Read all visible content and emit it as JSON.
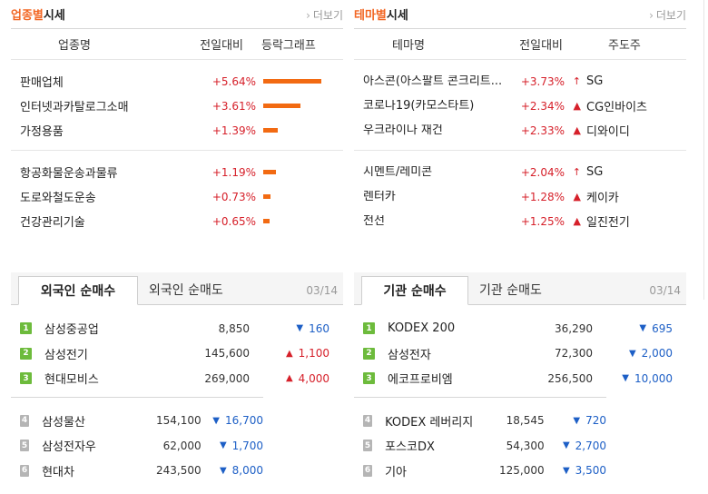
{
  "industry": {
    "title_accent": "업종별",
    "title_rest": " 시세",
    "more": "더보기",
    "headers": [
      "업종명",
      "전일대비",
      "등락그래프"
    ],
    "groups": [
      [
        {
          "name": "판매업체",
          "change": "+5.64%",
          "value": 5.64
        },
        {
          "name": "인터넷과카탈로그소매",
          "change": "+3.61%",
          "value": 3.61
        },
        {
          "name": "가정용품",
          "change": "+1.39%",
          "value": 1.39
        }
      ],
      [
        {
          "name": "항공화물운송과물류",
          "change": "+1.19%",
          "value": 1.19
        },
        {
          "name": "도로와철도운송",
          "change": "+0.73%",
          "value": 0.73
        },
        {
          "name": "건강관리기술",
          "change": "+0.65%",
          "value": 0.65
        }
      ]
    ]
  },
  "theme": {
    "title_accent": "테마별",
    "title_rest": " 시세",
    "more": "더보기",
    "headers": [
      "테마명",
      "전일대비",
      "주도주"
    ],
    "groups": [
      [
        {
          "name": "아스콘(아스팔트 콘크리트...",
          "change": "+3.73%",
          "icon": "upper-limit-arrow-icon",
          "symbol": "↑",
          "leader": "SG"
        },
        {
          "name": "코로나19(카모스타트)",
          "change": "+2.34%",
          "icon": "up-triangle-icon",
          "symbol": "▲",
          "leader": "CG인바이츠"
        },
        {
          "name": "우크라이나 재건",
          "change": "+2.33%",
          "icon": "up-triangle-icon",
          "symbol": "▲",
          "leader": "디와이디"
        }
      ],
      [
        {
          "name": "시멘트/레미콘",
          "change": "+2.04%",
          "icon": "upper-limit-arrow-icon",
          "symbol": "↑",
          "leader": "SG"
        },
        {
          "name": "렌터카",
          "change": "+1.28%",
          "icon": "up-triangle-icon",
          "symbol": "▲",
          "leader": "케이카"
        },
        {
          "name": "전선",
          "change": "+1.25%",
          "icon": "up-triangle-icon",
          "symbol": "▲",
          "leader": "일진전기"
        }
      ]
    ]
  },
  "foreign": {
    "tab_active": "외국인 순매수",
    "tab_inactive": "외국인 순매도",
    "date": "03/14",
    "groups": [
      [
        {
          "rank": "1",
          "name": "삼성중공업",
          "price": "8,850",
          "dir": "down",
          "change": "160"
        },
        {
          "rank": "2",
          "name": "삼성전기",
          "price": "145,600",
          "dir": "up",
          "change": "1,100"
        },
        {
          "rank": "3",
          "name": "현대모비스",
          "price": "269,000",
          "dir": "up",
          "change": "4,000"
        }
      ],
      [
        {
          "rank": "4",
          "name": "삼성물산",
          "price": "154,100",
          "dir": "down",
          "change": "16,700"
        },
        {
          "rank": "5",
          "name": "삼성전자우",
          "price": "62,000",
          "dir": "down",
          "change": "1,700"
        },
        {
          "rank": "6",
          "name": "현대차",
          "price": "243,500",
          "dir": "down",
          "change": "8,000"
        }
      ]
    ]
  },
  "institution": {
    "tab_active": "기관 순매수",
    "tab_inactive": "기관 순매도",
    "date": "03/14",
    "groups": [
      [
        {
          "rank": "1",
          "name": "KODEX 200",
          "price": "36,290",
          "dir": "down",
          "change": "695"
        },
        {
          "rank": "2",
          "name": "삼성전자",
          "price": "72,300",
          "dir": "down",
          "change": "2,000"
        },
        {
          "rank": "3",
          "name": "에코프로비엠",
          "price": "256,500",
          "dir": "down",
          "change": "10,000"
        }
      ],
      [
        {
          "rank": "4",
          "name": "KODEX 레버리지",
          "price": "18,545",
          "dir": "down",
          "change": "720"
        },
        {
          "rank": "5",
          "name": "포스코DX",
          "price": "54,300",
          "dir": "down",
          "change": "2,700"
        },
        {
          "rank": "6",
          "name": "기아",
          "price": "125,000",
          "dir": "down",
          "change": "3,500"
        }
      ]
    ]
  },
  "colors": {
    "accent": "#f26522",
    "up": "#d6202a",
    "down": "#1d5fc6",
    "bar": "#f26a12",
    "rank_top": "#6dbb3c",
    "rank_other": "#b5b5b5"
  }
}
